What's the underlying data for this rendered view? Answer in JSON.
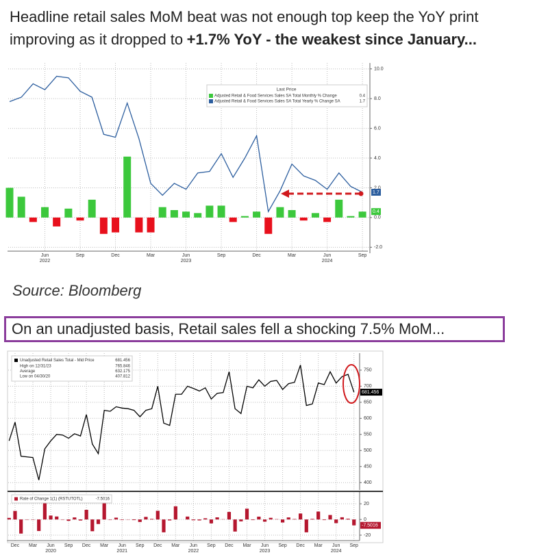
{
  "headline": {
    "text": "Headline retail sales MoM beat was not enough top keep the YoY print improving as it dropped to",
    "bold": "+1.7% YoY - the weakest since January..."
  },
  "source": "Source: Bloomberg",
  "caption": "On an unadjusted basis, Retail sales fell a shocking 7.5% MoM...",
  "chart_data": [
    {
      "type": "combo",
      "categories": [
        null,
        null,
        null,
        "Jun",
        null,
        null,
        "Sep",
        null,
        null,
        "Dec",
        null,
        null,
        "Mar",
        null,
        null,
        "Jun",
        null,
        null,
        "Sep",
        null,
        null,
        "Dec",
        null,
        null,
        "Mar",
        null,
        null,
        "Jun",
        null,
        null,
        "Sep"
      ],
      "year_labels": [
        "2022",
        "2023",
        "2024"
      ],
      "legend_title": "Last Price",
      "series": [
        {
          "name": "Adjusted Retail & Food Services Sales SA Total Monthly % Change",
          "kind": "bar",
          "color": "#3cc83c",
          "negative_color": "#e8101c",
          "values": [
            2.0,
            1.4,
            -0.3,
            0.7,
            -0.6,
            0.6,
            -0.2,
            1.2,
            -1.1,
            -1.0,
            4.1,
            -1.0,
            -1.0,
            0.7,
            0.5,
            0.4,
            0.3,
            0.8,
            0.8,
            -0.3,
            0.1,
            0.4,
            -1.1,
            0.7,
            0.5,
            -0.2,
            0.3,
            -0.3,
            1.2,
            0.1,
            0.4
          ]
        },
        {
          "name": "Adjusted Retail & Food Services Sales SA Total Yearly % Change SA",
          "kind": "line",
          "color": "#2b5d9e",
          "values": [
            7.8,
            8.1,
            9.0,
            8.6,
            9.5,
            9.4,
            8.5,
            8.1,
            5.6,
            5.4,
            7.7,
            5.3,
            2.3,
            1.5,
            2.3,
            1.9,
            3.0,
            3.1,
            4.3,
            2.7,
            4.0,
            5.5,
            0.4,
            1.8,
            3.6,
            2.8,
            2.5,
            1.9,
            3.0,
            2.1,
            1.7
          ]
        }
      ],
      "ylim": [
        -2.4,
        10.4
      ],
      "yticks": [
        {
          "value": 10,
          "label": "10.0"
        },
        {
          "value": 8,
          "label": "8.0"
        },
        {
          "value": 6,
          "label": "6.0"
        },
        {
          "value": 4,
          "label": "4.0"
        },
        {
          "value": 2,
          "label": "2.0"
        },
        {
          "value": 0,
          "label": "0.0"
        },
        {
          "value": -2,
          "label": "-2.0"
        }
      ],
      "grid": true
    },
    {
      "type": "line",
      "categories": [
        null,
        "Dec",
        null,
        null,
        "Mar",
        null,
        null,
        "Jun",
        null,
        null,
        "Sep",
        null,
        null,
        "Dec",
        null,
        null,
        "Mar",
        null,
        null,
        "Jun",
        null,
        null,
        "Sep",
        null,
        null,
        "Dec",
        null,
        null,
        "Mar",
        null,
        null,
        "Jun",
        null,
        null,
        "Sep",
        null,
        null,
        "Dec",
        null,
        null,
        "Mar",
        null,
        null,
        "Jun",
        null,
        null,
        "Sep",
        null,
        null,
        "Dec",
        null,
        null,
        "Mar",
        null,
        null,
        "Jun",
        null,
        null,
        "Sep"
      ],
      "year_labels": [
        "2020",
        "2021",
        "2022",
        "2023",
        "2024"
      ],
      "series": [
        {
          "name": "Unadjusted Retail Sales Total - Mid Price",
          "color": "#000000",
          "values": [
            530,
            588,
            482,
            480,
            478,
            407.812,
            505,
            530,
            550,
            548,
            538,
            552,
            545,
            612,
            520,
            490,
            625,
            622,
            636,
            632,
            630,
            625,
            605,
            625,
            630,
            700,
            585,
            578,
            675,
            675,
            700,
            693,
            685,
            695,
            660,
            678,
            680,
            745,
            630,
            615,
            700,
            695,
            720,
            700,
            715,
            718,
            690,
            708,
            712,
            765.846,
            640,
            645,
            710,
            705,
            745,
            710,
            730,
            737,
            681.456
          ]
        }
      ],
      "stats": [
        {
          "label": "High on 12/31/23",
          "value": 765.846
        },
        {
          "label": "Average",
          "value": 632.175
        },
        {
          "label": "Low on 04/30/20",
          "value": 407.812
        }
      ],
      "ylim": [
        377,
        803
      ],
      "yticks": [
        750,
        700,
        650,
        600,
        550,
        500,
        450,
        400
      ],
      "grid": true,
      "lower": {
        "type": "bar",
        "series": [
          {
            "name": "Rate of Change 1(1) (RSTUTOTL)",
            "color": "#b5172f",
            "values": [
              2,
              10.9,
              -18.0,
              -0.4,
              -0.4,
              -14.7,
              23.8,
              5.0,
              3.8,
              -0.4,
              -1.8,
              2.6,
              -1.3,
              12.3,
              -15.0,
              -5.8,
              27.6,
              -0.5,
              2.3,
              -0.6,
              -0.3,
              -0.8,
              -3.2,
              3.3,
              0.8,
              11.1,
              -16.4,
              -1.2,
              16.8,
              0,
              3.7,
              -1.0,
              -1.2,
              1.5,
              -5.0,
              2.7,
              0.3,
              9.6,
              -15.4,
              -2.4,
              13.8,
              -0.7,
              3.6,
              -2.8,
              2.1,
              0.4,
              -3.9,
              2.6,
              0.6,
              7.6,
              -16.4,
              0.8,
              10.1,
              -0.7,
              5.7,
              -4.7,
              2.8,
              1.0,
              -7.5016
            ]
          }
        ],
        "ylim": [
          -27,
          35
        ],
        "yticks": [
          20,
          0,
          -20
        ]
      }
    }
  ]
}
